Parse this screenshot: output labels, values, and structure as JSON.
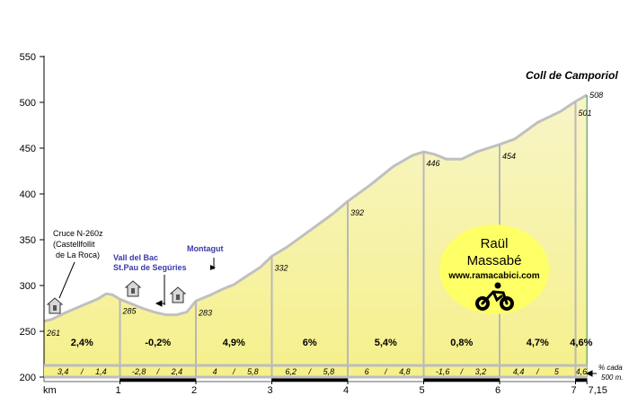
{
  "chart_data": {
    "type": "area",
    "title": "Coll de Camporiol",
    "xlabel": "km",
    "ylabel": "",
    "xlim": [
      0,
      7.15
    ],
    "ylim": [
      200,
      550
    ],
    "y_ticks": [
      "200",
      "250",
      "300",
      "350",
      "400",
      "450",
      "500",
      "550"
    ],
    "x_ticks": [
      {
        "value": 1,
        "label": "1"
      },
      {
        "value": 2,
        "label": "2"
      },
      {
        "value": 3,
        "label": "3"
      },
      {
        "value": 4,
        "label": "4"
      },
      {
        "value": 5,
        "label": "5"
      },
      {
        "value": 6,
        "label": "6"
      },
      {
        "value": 7,
        "label": "7"
      },
      {
        "value": 7.15,
        "label": "7,15"
      }
    ],
    "grid": false,
    "fill_color": "#f5f08a",
    "fill_color_top": "#f8f5c8",
    "line_color": "#c0c0c0",
    "profile": [
      {
        "x": 0,
        "y": 261
      },
      {
        "x": 0.1,
        "y": 263
      },
      {
        "x": 0.3,
        "y": 271
      },
      {
        "x": 0.5,
        "y": 278
      },
      {
        "x": 0.7,
        "y": 285
      },
      {
        "x": 0.82,
        "y": 291
      },
      {
        "x": 0.9,
        "y": 290
      },
      {
        "x": 1.0,
        "y": 285
      },
      {
        "x": 1.15,
        "y": 280
      },
      {
        "x": 1.3,
        "y": 275
      },
      {
        "x": 1.45,
        "y": 271
      },
      {
        "x": 1.6,
        "y": 268
      },
      {
        "x": 1.75,
        "y": 268
      },
      {
        "x": 1.88,
        "y": 271
      },
      {
        "x": 2.0,
        "y": 283
      },
      {
        "x": 2.2,
        "y": 290
      },
      {
        "x": 2.35,
        "y": 296
      },
      {
        "x": 2.5,
        "y": 301
      },
      {
        "x": 2.7,
        "y": 312
      },
      {
        "x": 2.85,
        "y": 320
      },
      {
        "x": 3.0,
        "y": 332
      },
      {
        "x": 3.2,
        "y": 342
      },
      {
        "x": 3.5,
        "y": 360
      },
      {
        "x": 3.8,
        "y": 378
      },
      {
        "x": 4.0,
        "y": 392
      },
      {
        "x": 4.3,
        "y": 410
      },
      {
        "x": 4.6,
        "y": 430
      },
      {
        "x": 4.85,
        "y": 442
      },
      {
        "x": 5.0,
        "y": 446
      },
      {
        "x": 5.15,
        "y": 443
      },
      {
        "x": 5.3,
        "y": 438
      },
      {
        "x": 5.5,
        "y": 438
      },
      {
        "x": 5.7,
        "y": 446
      },
      {
        "x": 5.85,
        "y": 450
      },
      {
        "x": 6.0,
        "y": 454
      },
      {
        "x": 6.2,
        "y": 460
      },
      {
        "x": 6.5,
        "y": 478
      },
      {
        "x": 6.8,
        "y": 490
      },
      {
        "x": 7.0,
        "y": 501
      },
      {
        "x": 7.15,
        "y": 508
      }
    ],
    "point_labels": [
      {
        "x": 0,
        "y": 261,
        "label": "261"
      },
      {
        "x": 1,
        "y": 285,
        "label": "285"
      },
      {
        "x": 2,
        "y": 283,
        "label": "283"
      },
      {
        "x": 3,
        "y": 332,
        "label": "332"
      },
      {
        "x": 4,
        "y": 392,
        "label": "392"
      },
      {
        "x": 5,
        "y": 446,
        "label": "446"
      },
      {
        "x": 6,
        "y": 454,
        "label": "454"
      },
      {
        "x": 7,
        "y": 501,
        "label": "501"
      },
      {
        "x": 7.15,
        "y": 508,
        "label": "508"
      }
    ],
    "segment_gradients": [
      "2,4%",
      "-0,2%",
      "4,9%",
      "6%",
      "5,4%",
      "0,8%",
      "4,7%",
      "4,6%"
    ],
    "segment_details": [
      [
        "3,4",
        "1,4"
      ],
      [
        "-2,8",
        "2,4"
      ],
      [
        "4",
        "5,8"
      ],
      [
        "6,2",
        "5,8"
      ],
      [
        "6",
        "4,8"
      ],
      [
        "-1,6",
        "3,2"
      ],
      [
        "4,4",
        "5"
      ],
      [
        "4,6"
      ]
    ],
    "detail_separator": "/",
    "detail_note": [
      "% cada",
      "500 m."
    ],
    "annotations": [
      {
        "lines": [
          "Cruce N-260z",
          "(Castellfollit",
          "de La Roca)"
        ],
        "color": "#000000"
      },
      {
        "lines": [
          "Vall del Bac",
          "St.Pau de Segúries"
        ],
        "color": "#3a3aa8"
      },
      {
        "lines": [
          "Montagut"
        ],
        "color": "#3a3aa8"
      }
    ],
    "author_badge": {
      "name_lines": [
        "Raül",
        "Massabé"
      ],
      "url": "www.ramacabici.com",
      "color": "#ffff66"
    }
  }
}
